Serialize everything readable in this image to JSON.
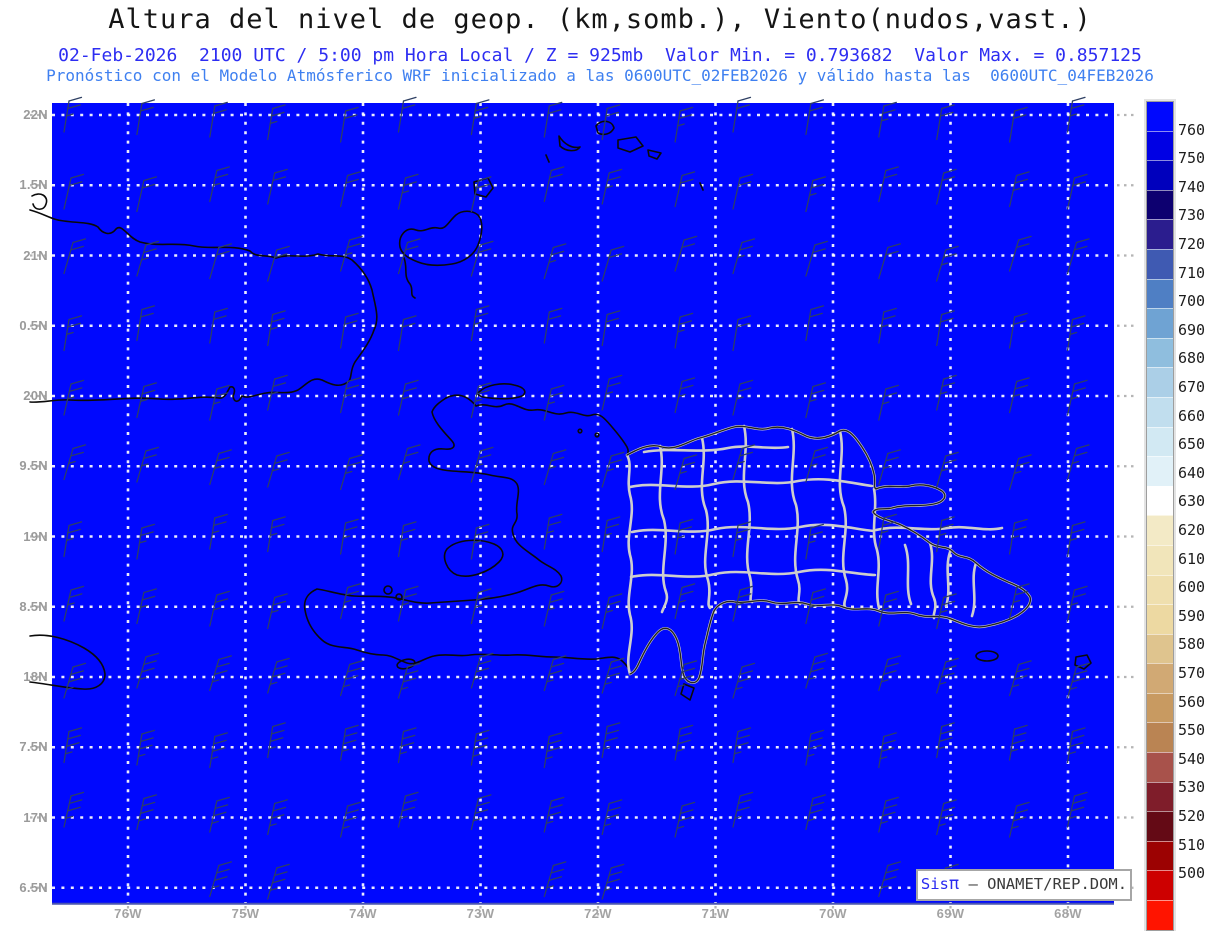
{
  "header": {
    "title": "Altura del nivel de geop. (km,somb.), Viento(nudos,vast.)",
    "line2": "02-Feb-2026  2100 UTC / 5:00 pm Hora Local / Z = 925mb  Valor Min. = 0.793682  Valor Max. = 0.857125",
    "line3": "Pronóstico con el Modelo Atmósferico WRF inicializado a las 0600UTC_02FEB2026 y válido hasta las  0600UTC_04FEB2026",
    "title_color": "#151515",
    "line2_color": "#2d2df2",
    "line3_color": "#3f80f0"
  },
  "map": {
    "background_color": "#0008fe",
    "grid_color": "#ffffff",
    "margin_tick_color": "#b5b5b5",
    "coast_color": "#0a0a0a",
    "province_color": "#cdcdcd",
    "dr_coast_color": "#222222",
    "barb_color": "#2e3f63",
    "bottom_frame_color": "#4a55b0",
    "lat_labels": [
      "22N",
      "1.5N",
      "21N",
      "0.5N",
      "20N",
      "9.5N",
      "19N",
      "8.5N",
      "18N",
      "7.5N",
      "17N",
      "6.5N"
    ],
    "lon_labels": [
      "76W",
      "75W",
      "74W",
      "73W",
      "72W",
      "71W",
      "70W",
      "69W",
      "68W"
    ],
    "wind_barbs": {
      "direction": "ENE trade flow",
      "speed_note": "10-25 knots",
      "cols": 16,
      "rows": 12
    }
  },
  "colorbar": {
    "tick_labels": [
      "760",
      "750",
      "740",
      "730",
      "720",
      "710",
      "700",
      "690",
      "680",
      "670",
      "660",
      "650",
      "640",
      "630",
      "620",
      "610",
      "600",
      "590",
      "580",
      "570",
      "560",
      "550",
      "540",
      "530",
      "520",
      "510",
      "500"
    ],
    "segment_colors": [
      "#0008fe",
      "#0000e4",
      "#0000bd",
      "#0d0070",
      "#2b1d8e",
      "#3f5ab2",
      "#4f7fc4",
      "#6fa3d3",
      "#8fbede",
      "#abcfe7",
      "#c1deee",
      "#d2e9f3",
      "#e1f1f8",
      "#ffffff",
      "#f3eac6",
      "#f1e5ba",
      "#efdfae",
      "#edd9a2",
      "#dfc48e",
      "#d1a974",
      "#c89a61",
      "#ba8453",
      "#a8524b",
      "#7f1d2a",
      "#640a15",
      "#9c0202",
      "#cd0000",
      "#ff1400"
    ]
  },
  "credit": {
    "prefix": "Sis",
    "pi": "π",
    "rest": " – ONAMET/REP.DOM."
  }
}
